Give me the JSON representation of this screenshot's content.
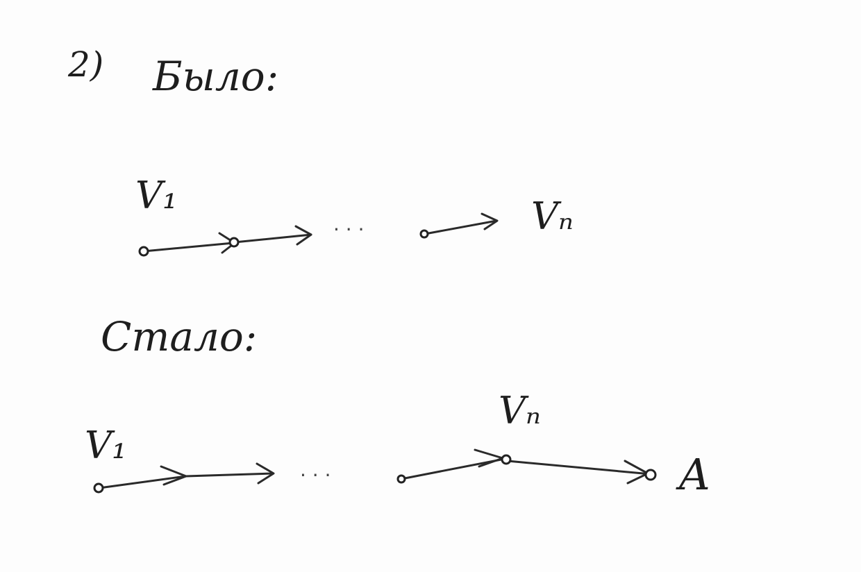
{
  "sketch": {
    "item_number": "2)",
    "before_label": "Было:",
    "after_label": "Стало:",
    "before_chain": {
      "start_label": "V₁",
      "end_label": "Vₙ",
      "ellipsis": "· · ·"
    },
    "after_chain": {
      "start_label": "V₁",
      "mid_label": "Vₙ",
      "end_label": "A",
      "ellipsis": "· · ·"
    }
  }
}
